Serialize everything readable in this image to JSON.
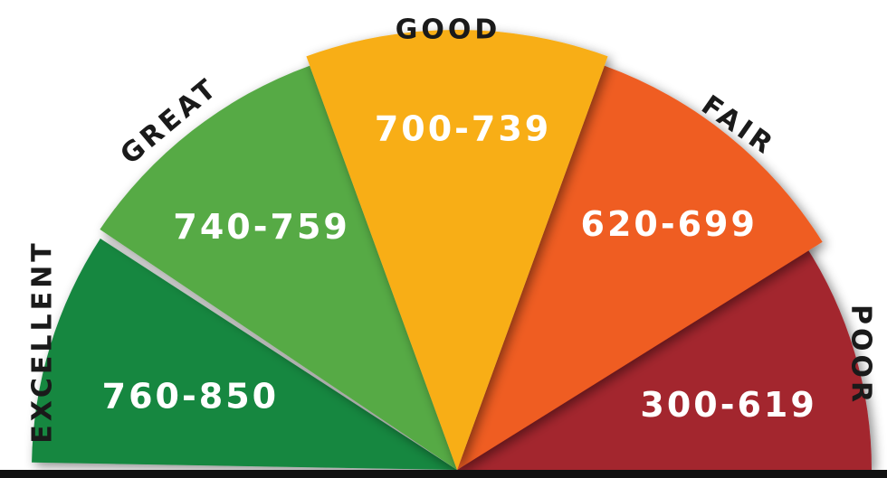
{
  "segments": [
    {
      "label": "EXCELLENT",
      "range": "760-850"
    },
    {
      "label": "GREAT",
      "range": "740-759"
    },
    {
      "label": "GOOD",
      "range": "700-739"
    },
    {
      "label": "FAIR",
      "range": "620-699"
    },
    {
      "label": "POOR",
      "range": "300-619"
    }
  ]
}
